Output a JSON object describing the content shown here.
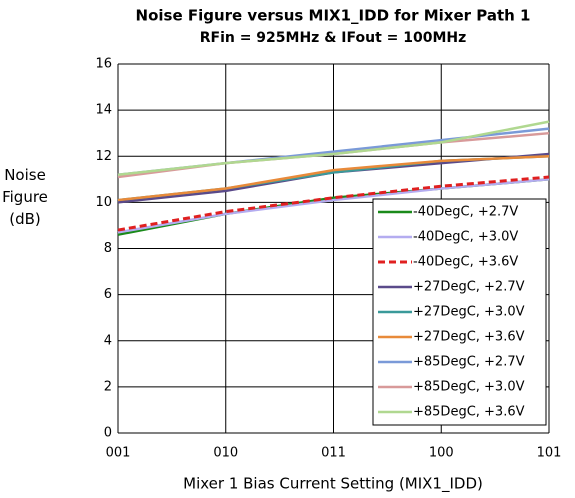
{
  "chart_data": {
    "type": "line",
    "title": "Noise Figure versus MIX1_IDD for Mixer Path 1",
    "subtitle": "RFin = 925MHz & IFout = 100MHz",
    "xlabel": "Mixer 1 Bias Current Setting (MIX1_IDD)",
    "ylabel": "Noise Figure (dB)",
    "categories": [
      "001",
      "010",
      "011",
      "100",
      "101"
    ],
    "ylim": [
      0,
      16
    ],
    "yticks": [
      0,
      2,
      4,
      6,
      8,
      10,
      12,
      14,
      16
    ],
    "grid": true,
    "legend": "lower right",
    "series": [
      {
        "name": "-40DegC, +2.7V",
        "color": "#1a8a1a",
        "values": [
          8.6,
          9.5,
          10.2,
          10.6,
          11.0
        ]
      },
      {
        "name": "-40DegC, +3.0V",
        "color": "#b4acf0",
        "values": [
          8.7,
          9.5,
          10.1,
          10.6,
          11.0
        ]
      },
      {
        "name": "-40DegC, +3.6V",
        "color": "#e02020",
        "style": "dashed",
        "values": [
          8.8,
          9.6,
          10.2,
          10.7,
          11.1
        ]
      },
      {
        "name": "+27DegC, +2.7V",
        "color": "#5a4a8a",
        "values": [
          10.0,
          10.5,
          11.3,
          11.7,
          12.1
        ]
      },
      {
        "name": "+27DegC, +3.0V",
        "color": "#3a9a9a",
        "values": [
          10.1,
          10.6,
          11.3,
          11.8,
          12.0
        ]
      },
      {
        "name": "+27DegC, +3.6V",
        "color": "#e88a3a",
        "values": [
          10.1,
          10.6,
          11.4,
          11.8,
          12.0
        ]
      },
      {
        "name": "+85DegC, +2.7V",
        "color": "#7a9ad8",
        "values": [
          11.2,
          11.7,
          12.2,
          12.7,
          13.2
        ]
      },
      {
        "name": "+85DegC, +3.0V",
        "color": "#d89a9a",
        "values": [
          11.1,
          11.7,
          12.1,
          12.6,
          13.0
        ]
      },
      {
        "name": "+85DegC, +3.6V",
        "color": "#b0d890",
        "values": [
          11.2,
          11.7,
          12.1,
          12.6,
          13.5
        ]
      }
    ]
  }
}
